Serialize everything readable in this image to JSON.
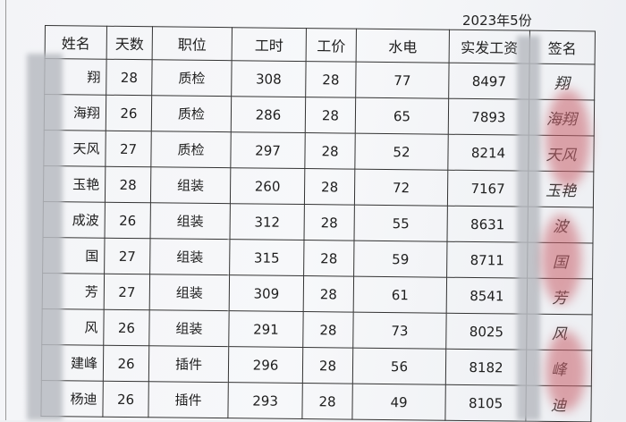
{
  "month_label": "2023年5份",
  "table": {
    "headers": [
      "姓名",
      "天数",
      "职位",
      "工时",
      "工价",
      "水电",
      "实发工资",
      "签名"
    ],
    "rows": [
      {
        "name": "翔",
        "days": "28",
        "position": "质检",
        "hours": "308",
        "rate": "28",
        "utilities": "77",
        "net_pay": "8497",
        "signature": "翔"
      },
      {
        "name": "海翔",
        "days": "26",
        "position": "质检",
        "hours": "286",
        "rate": "28",
        "utilities": "65",
        "net_pay": "7893",
        "signature": "海翔"
      },
      {
        "name": "天风",
        "days": "27",
        "position": "质检",
        "hours": "297",
        "rate": "28",
        "utilities": "52",
        "net_pay": "8214",
        "signature": "天风"
      },
      {
        "name": "玉艳",
        "days": "28",
        "position": "组装",
        "hours": "260",
        "rate": "28",
        "utilities": "72",
        "net_pay": "7167",
        "signature": "玉艳"
      },
      {
        "name": "成波",
        "days": "26",
        "position": "组装",
        "hours": "312",
        "rate": "28",
        "utilities": "55",
        "net_pay": "8631",
        "signature": "波"
      },
      {
        "name": "国",
        "days": "27",
        "position": "组装",
        "hours": "315",
        "rate": "28",
        "utilities": "59",
        "net_pay": "8711",
        "signature": "国"
      },
      {
        "name": "芳",
        "days": "27",
        "position": "组装",
        "hours": "309",
        "rate": "28",
        "utilities": "61",
        "net_pay": "8541",
        "signature": "芳"
      },
      {
        "name": "风",
        "days": "26",
        "position": "组装",
        "hours": "291",
        "rate": "28",
        "utilities": "73",
        "net_pay": "8025",
        "signature": "风"
      },
      {
        "name": "建峰",
        "days": "26",
        "position": "插件",
        "hours": "296",
        "rate": "28",
        "utilities": "56",
        "net_pay": "8182",
        "signature": "峰"
      },
      {
        "name": "杨迪",
        "days": "26",
        "position": "插件",
        "hours": "293",
        "rate": "28",
        "utilities": "49",
        "net_pay": "8105",
        "signature": "迪"
      }
    ]
  }
}
